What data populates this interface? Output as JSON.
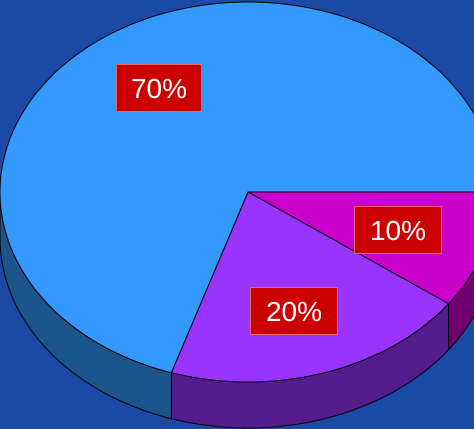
{
  "chart_data": {
    "type": "pie",
    "three_d": true,
    "title": "",
    "slices": [
      {
        "label": "70%",
        "value": 70,
        "color": "#3399ff"
      },
      {
        "label": "20%",
        "value": 20,
        "color": "#9933ff"
      },
      {
        "label": "10%",
        "value": 10,
        "color": "#cc00cc"
      }
    ],
    "legend": "none"
  },
  "colors": {
    "background": "#1a4aa6",
    "label_box": "#cc0000",
    "outline": "#000000"
  }
}
